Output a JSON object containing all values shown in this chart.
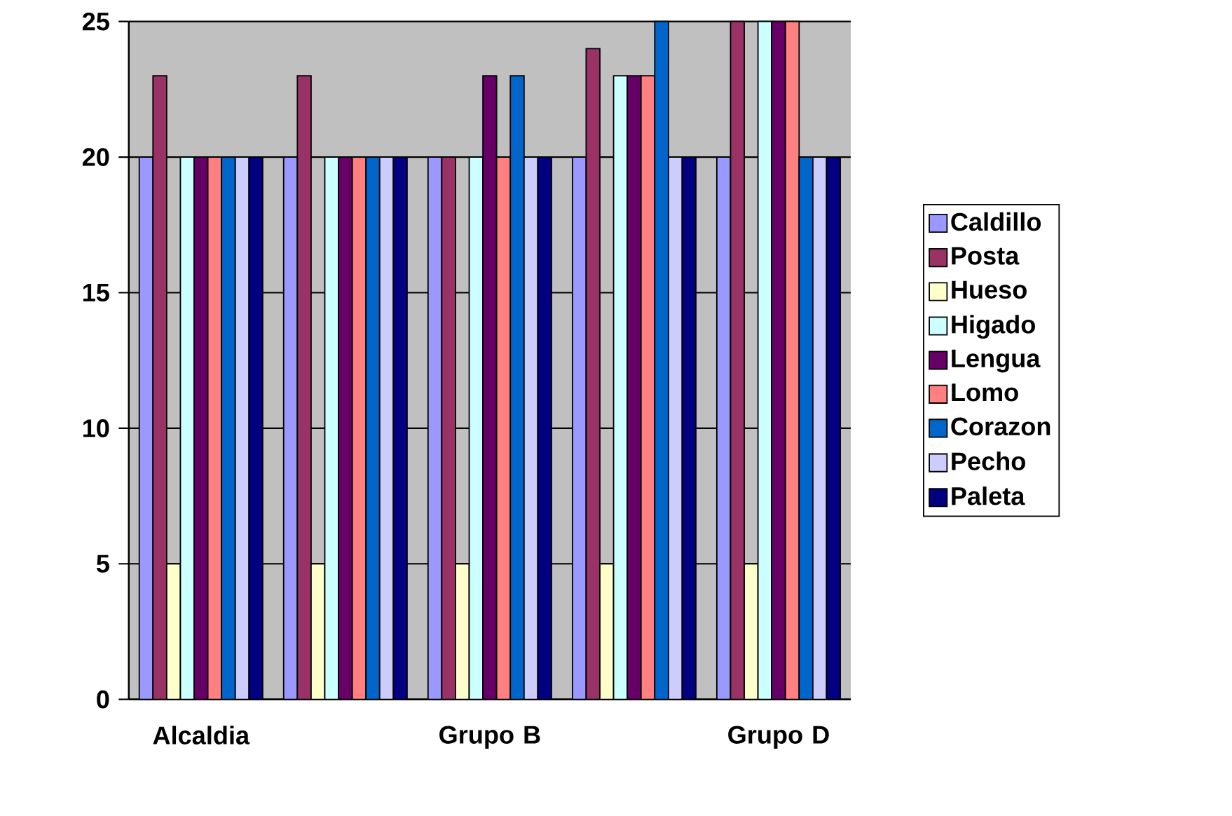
{
  "chart_data": {
    "type": "bar",
    "categories": [
      "Alcaldia",
      null,
      "Grupo B",
      null,
      "Grupo D"
    ],
    "series": [
      {
        "name": "Caldillo",
        "color": "#9999ff",
        "values": [
          20,
          20,
          20,
          20,
          20
        ]
      },
      {
        "name": "Posta",
        "color": "#993366",
        "values": [
          23,
          23,
          20,
          24,
          25
        ]
      },
      {
        "name": "Hueso",
        "color": "#ffffcc",
        "values": [
          5,
          5,
          5,
          5,
          5
        ]
      },
      {
        "name": "Higado",
        "color": "#ccffff",
        "values": [
          20,
          20,
          20,
          23,
          25
        ]
      },
      {
        "name": "Lengua",
        "color": "#660066",
        "values": [
          20,
          20,
          23,
          23,
          25
        ]
      },
      {
        "name": "Lomo",
        "color": "#ff8080",
        "values": [
          20,
          20,
          20,
          23,
          25
        ]
      },
      {
        "name": "Corazon",
        "color": "#0066cc",
        "values": [
          20,
          20,
          23,
          25,
          20
        ]
      },
      {
        "name": "Pecho",
        "color": "#ccccff",
        "values": [
          20,
          20,
          20,
          20,
          20
        ]
      },
      {
        "name": "Paleta",
        "color": "#000080",
        "values": [
          20,
          20,
          20,
          20,
          20
        ]
      }
    ],
    "ylim": [
      0,
      25
    ],
    "yticks": [
      0,
      5,
      10,
      15,
      20,
      25
    ],
    "grid": "y",
    "legend": "right"
  }
}
